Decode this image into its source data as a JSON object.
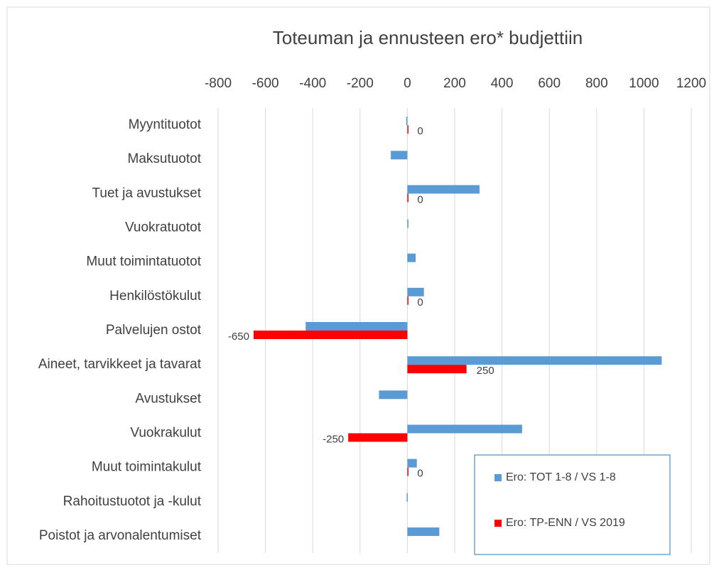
{
  "chart_data": {
    "type": "barh",
    "title": "Toteuman ja ennusteen ero* budjettiin",
    "categories": [
      "Myyntituotot",
      "Maksutuotot",
      "Tuet ja avustukset",
      "Vuokratuotot",
      "Muut toimintatuotot",
      "Henkilöstökulut",
      "Palvelujen ostot",
      "Aineet, tarvikkeet ja tavarat",
      "Avustukset",
      "Vuokrakulut",
      "Muut toimintakulut",
      "Rahoitustuotot ja -kulut",
      "Poistot ja arvonalentumiset"
    ],
    "series": [
      {
        "name": "Ero: TOT 1-8 / VS 1-8",
        "color": "#5b9bd5",
        "values": [
          -5,
          -70,
          305,
          0,
          35,
          70,
          -430,
          1075,
          -120,
          485,
          40,
          -3,
          135
        ],
        "show_labels": false
      },
      {
        "name": "Ero: TP-ENN / VS 2019",
        "color": "#ff0000",
        "values": [
          0,
          null,
          0,
          null,
          null,
          0,
          -650,
          250,
          null,
          -250,
          0,
          null,
          null
        ],
        "show_labels": true
      }
    ],
    "xlim": [
      -800,
      1200
    ],
    "xticks": [
      -800,
      -600,
      -400,
      -200,
      0,
      200,
      400,
      600,
      800,
      1000,
      1200
    ],
    "grid": true,
    "legend": "lower right"
  }
}
